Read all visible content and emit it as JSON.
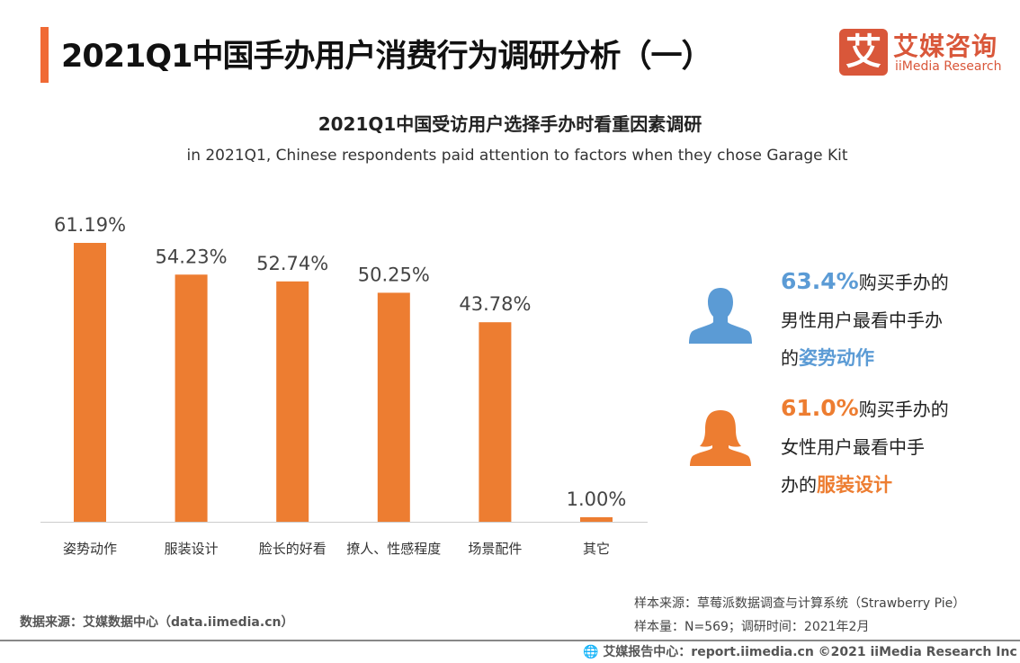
{
  "header": {
    "title": "2021Q1中国手办用户消费行为调研分析（一）",
    "logo_mark": "艾",
    "logo_cn": "艾媒咨询",
    "logo_en": "iiMedia Research"
  },
  "chart_data": {
    "type": "bar",
    "title": "2021Q1中国受访用户选择手办时看重因素调研",
    "subtitle": "in 2021Q1, Chinese respondents paid attention to factors when they chose Garage Kit",
    "categories": [
      "姿势动作",
      "服装设计",
      "脸长的好看",
      "撩人、性感程度",
      "场景配件",
      "其它"
    ],
    "values": [
      61.19,
      54.23,
      52.74,
      50.25,
      43.78,
      1.0
    ],
    "data_labels": [
      "61.19%",
      "54.23%",
      "52.74%",
      "50.25%",
      "43.78%",
      "1.00%"
    ],
    "unit": "%",
    "ylim": [
      0,
      70
    ],
    "grid": false,
    "bar_color": "#ed7d31"
  },
  "stats": {
    "male": {
      "value": "63.4%",
      "line1": "购买手办的",
      "line2": "男性用户最看中手办",
      "line3_prefix": "的",
      "highlight": "姿势动作",
      "color": "#5b9bd5",
      "icon": "male-user-icon"
    },
    "female": {
      "value": "61.0%",
      "line1": "购买手办的",
      "line2": "女性用户最看中手",
      "line3_prefix": "办的",
      "highlight": "服装设计",
      "color": "#ed7d31",
      "icon": "female-user-icon"
    }
  },
  "footer": {
    "source_left": "数据来源：艾媒数据中心（data.iimedia.cn）",
    "sample_source": "样本来源：草莓派数据调查与计算系统（Strawberry Pie）",
    "sample_size": "样本量：N=569；调研时间：2021年2月",
    "report": "艾媒报告中心：report.iimedia.cn   ©2021  iiMedia Research  Inc"
  }
}
